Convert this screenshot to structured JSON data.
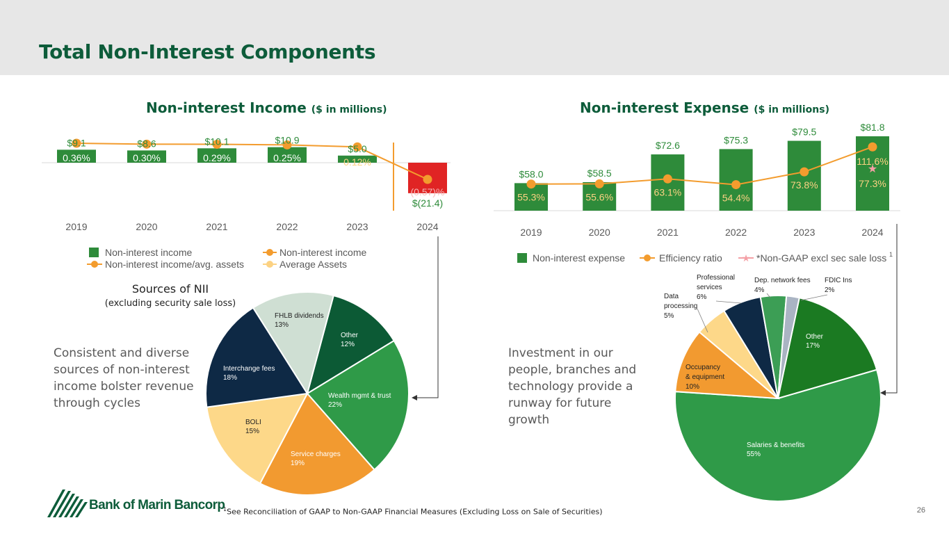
{
  "page": {
    "title": "Total Non-Interest Components",
    "page_number": "26",
    "footnote_sup": "1",
    "footnote": "See Reconciliation of GAAP to Non-GAAP Financial Measures (Excluding Loss on Sale of Securities)",
    "logo_text": "Bank of Marin Bancorp"
  },
  "colors": {
    "dark_green": "#0d5c3a",
    "bar_green": "#2e8b3a",
    "orange": "#f39c2e",
    "red": "#e02424",
    "navy": "#0e2945",
    "pink_star": "#f4a0a6"
  },
  "income_chart": {
    "title": "Non-interest Income",
    "title_unit": "($ in millions)",
    "legend": [
      "Non-interest income",
      "Non-interest income",
      "Non-interest income/avg. assets",
      "Average Assets"
    ]
  },
  "expense_chart": {
    "title": "Non-interest Expense",
    "title_unit": "($ in millions)",
    "legend": [
      "Non-interest expense",
      "Efficiency ratio",
      "*Non-GAAP excl sec sale loss"
    ],
    "legend_sup": "1"
  },
  "chart_data": [
    {
      "id": "income",
      "type": "bar",
      "title": "Non-interest Income ($ in millions)",
      "categories": [
        "2019",
        "2020",
        "2021",
        "2022",
        "2023",
        "2024"
      ],
      "series": [
        {
          "name": "Non-interest income",
          "values": [
            9.1,
            8.6,
            10.1,
            10.9,
            5.0,
            -21.4
          ],
          "labels": [
            "$9.1",
            "$8.6",
            "$10.1",
            "$10.9",
            "$5.0",
            "$(21.4)"
          ]
        },
        {
          "name": "Non-interest income/avg. assets",
          "type": "line",
          "values": [
            0.36,
            0.3,
            0.29,
            0.25,
            0.12,
            -0.57
          ],
          "labels": [
            "0.36%",
            "0.30%",
            "0.29%",
            "0.25%",
            "0.12%",
            "(0.57)%"
          ]
        }
      ],
      "ylim": [
        -25,
        15
      ]
    },
    {
      "id": "expense",
      "type": "bar",
      "title": "Non-interest Expense ($ in millions)",
      "categories": [
        "2019",
        "2020",
        "2021",
        "2022",
        "2023",
        "2024"
      ],
      "series": [
        {
          "name": "Non-interest expense",
          "values": [
            58.0,
            58.5,
            72.6,
            75.3,
            79.5,
            81.8
          ],
          "labels": [
            "$58.0",
            "$58.5",
            "$72.6",
            "$75.3",
            "$79.5",
            "$81.8"
          ]
        },
        {
          "name": "Efficiency ratio",
          "type": "line",
          "values": [
            55.3,
            55.6,
            63.1,
            54.4,
            73.8,
            111.6
          ],
          "labels": [
            "55.3%",
            "55.6%",
            "63.1%",
            "54.4%",
            "73.8%",
            "111.6%"
          ]
        },
        {
          "name": "*Non-GAAP excl sec sale loss",
          "type": "scatter",
          "x": [
            "2024"
          ],
          "values": [
            77.3
          ],
          "labels": [
            "77.3%"
          ]
        }
      ],
      "ylim": [
        0,
        90
      ]
    },
    {
      "id": "nii_sources",
      "type": "pie",
      "title": "Sources of NII",
      "subtitle": "(excluding security sale loss)",
      "slices": [
        {
          "label": "Other",
          "value": 12,
          "pct": "12%",
          "color": "#0c5a35"
        },
        {
          "label": "Wealth mgmt & trust",
          "value": 22,
          "pct": "22%",
          "color": "#2f9a48"
        },
        {
          "label": "Service charges",
          "value": 19,
          "pct": "19%",
          "color": "#f29a30"
        },
        {
          "label": "BOLI",
          "value": 15,
          "pct": "15%",
          "color": "#fdd889"
        },
        {
          "label": "Interchange fees",
          "value": 18,
          "pct": "18%",
          "color": "#0e2945"
        },
        {
          "label": "FHLB dividends",
          "value": 13,
          "pct": "13%",
          "color": "#cfdfd3"
        }
      ]
    },
    {
      "id": "expense_mix",
      "type": "pie",
      "slices": [
        {
          "label": "Other",
          "value": 17,
          "pct": "17%",
          "color": "#1b7a22"
        },
        {
          "label": "Salaries & benefits",
          "value": 55,
          "pct": "55%",
          "color": "#2f9a48"
        },
        {
          "label": "Occupancy & equipment",
          "value": 10,
          "pct": "10%",
          "color": "#f29a30"
        },
        {
          "label": "Data processing",
          "value": 5,
          "pct": "5%",
          "color": "#fdd889"
        },
        {
          "label": "Professional services",
          "value": 6,
          "pct": "6%",
          "color": "#0e2945"
        },
        {
          "label": "Dep. network fees",
          "value": 4,
          "pct": "4%",
          "color": "#3c9e55"
        },
        {
          "label": "FDIC Ins",
          "value": 2,
          "pct": "2%",
          "color": "#aab4c3"
        }
      ]
    }
  ],
  "left_text": "Consistent and diverse sources of non-interest income bolster revenue through cycles",
  "right_text": "Investment in our people, branches and technology provide a runway for future growth",
  "nii_heading": {
    "title": "Sources of NII",
    "subtitle": "(excluding security sale loss)"
  },
  "pie_labels": {
    "income": [
      {
        "name": "Other",
        "pct": "12%"
      },
      {
        "name": "Wealth mgmt & trust",
        "pct": "22%"
      },
      {
        "name": "Service charges",
        "pct": "19%"
      },
      {
        "name": "BOLI",
        "pct": "15%"
      },
      {
        "name": "Interchange fees",
        "pct": "18%"
      },
      {
        "name": "FHLB dividends",
        "pct": "13%"
      }
    ],
    "expense": [
      {
        "name": "Other",
        "pct": "17%"
      },
      {
        "name": "Salaries & benefits",
        "pct": "55%"
      },
      {
        "name1": "Occupancy",
        "name2": "& equipment",
        "pct": "10%"
      },
      {
        "name1": "Data",
        "name2": "processing",
        "pct": "5%"
      },
      {
        "name1": "Professional",
        "name2": "services",
        "pct": "6%"
      },
      {
        "name": "Dep. network fees",
        "pct": "4%"
      },
      {
        "name": "FDIC Ins",
        "pct": "2%"
      }
    ]
  }
}
